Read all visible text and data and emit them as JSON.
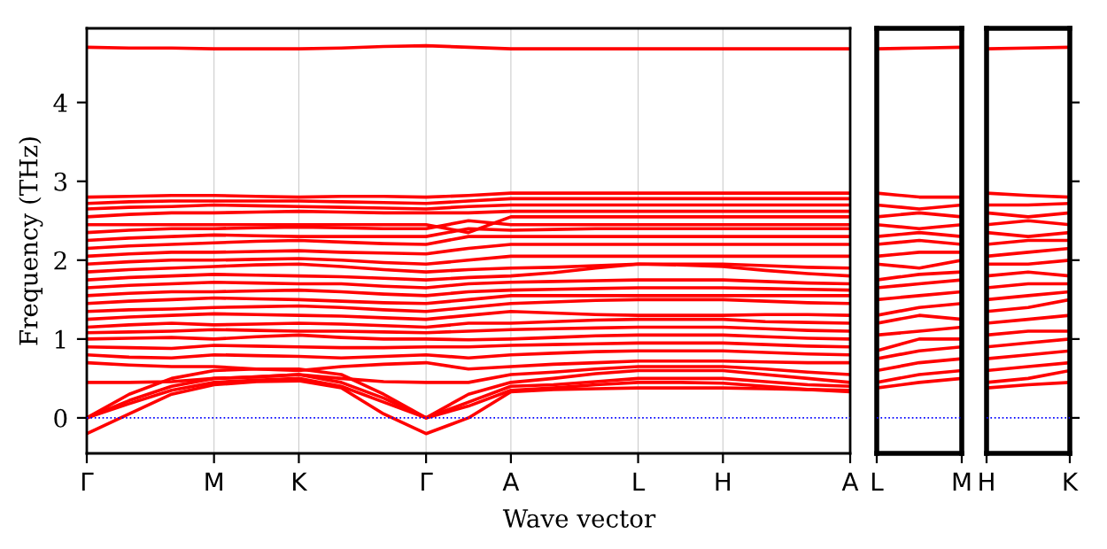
{
  "chart_data": [
    {
      "type": "line",
      "ylabel": "Frequency (THz)",
      "xlabel": "Wave vector",
      "line_style": "solid",
      "marker": "none",
      "grid": "x",
      "legend": false,
      "categories": [
        "Γ",
        null,
        null,
        "M",
        null,
        "K",
        null,
        null,
        "Γ",
        null,
        "A",
        null,
        null,
        "L",
        null,
        "H",
        null,
        null,
        "A"
      ],
      "ylim": [
        -0.45,
        4.94
      ],
      "yticks": [
        0,
        1,
        2,
        3,
        4
      ],
      "ref_lines": [
        {
          "axis": "y",
          "value": 0,
          "label": null,
          "color": "#0000ff",
          "line_style": "dotted"
        }
      ],
      "series": [
        {
          "color": "#ff0000",
          "values": [
            -0.2,
            0.05,
            0.3,
            0.42,
            0.46,
            0.47,
            0.38,
            0.05,
            -0.2,
            0.0,
            0.33,
            0.36,
            0.37,
            0.38,
            0.38,
            0.38,
            0.37,
            0.36,
            0.35
          ]
        },
        {
          "color": "#ff0000",
          "values": [
            0,
            0.18,
            0.35,
            0.45,
            0.48,
            0.5,
            0.4,
            0.2,
            0,
            0.15,
            0.35,
            0.38,
            0.42,
            0.45,
            0.45,
            0.44,
            0.4,
            0.36,
            0.33
          ]
        },
        {
          "color": "#ff0000",
          "values": [
            0,
            0.22,
            0.4,
            0.5,
            0.52,
            0.55,
            0.45,
            0.25,
            0,
            0.2,
            0.4,
            0.42,
            0.46,
            0.5,
            0.5,
            0.5,
            0.46,
            0.42,
            0.4
          ]
        },
        {
          "color": "#ff0000",
          "values": [
            0,
            0.3,
            0.5,
            0.6,
            0.62,
            0.62,
            0.55,
            0.3,
            0,
            0.3,
            0.45,
            0.5,
            0.56,
            0.6,
            0.6,
            0.6,
            0.55,
            0.5,
            0.45
          ]
        },
        {
          "color": "#ff0000",
          "values": [
            0.45,
            0.45,
            0.46,
            0.5,
            0.52,
            0.55,
            0.5,
            0.46,
            0.45,
            0.45,
            0.55,
            0.58,
            0.62,
            0.65,
            0.65,
            0.65,
            0.62,
            0.58,
            0.55
          ]
        },
        {
          "color": "#ff0000",
          "values": [
            0.7,
            0.67,
            0.65,
            0.65,
            0.62,
            0.6,
            0.65,
            0.68,
            0.7,
            0.62,
            0.65,
            0.68,
            0.7,
            0.72,
            0.72,
            0.72,
            0.71,
            0.7,
            0.7
          ]
        },
        {
          "color": "#ff0000",
          "values": [
            0.8,
            0.77,
            0.76,
            0.8,
            0.79,
            0.78,
            0.76,
            0.78,
            0.8,
            0.76,
            0.8,
            0.82,
            0.84,
            0.85,
            0.85,
            0.85,
            0.83,
            0.81,
            0.8
          ]
        },
        {
          "color": "#ff0000",
          "values": [
            0.9,
            0.89,
            0.88,
            0.92,
            0.91,
            0.9,
            0.89,
            0.89,
            0.9,
            0.9,
            0.92,
            0.93,
            0.94,
            0.95,
            0.95,
            0.95,
            0.93,
            0.91,
            0.9
          ]
        },
        {
          "color": "#ff0000",
          "values": [
            1.0,
            1.01,
            1.02,
            1.0,
            1.03,
            1.05,
            1.02,
            1.0,
            1.0,
            0.99,
            1.0,
            1.02,
            1.04,
            1.05,
            1.05,
            1.05,
            1.03,
            1.01,
            1.0
          ]
        },
        {
          "color": "#ff0000",
          "values": [
            1.08,
            1.09,
            1.1,
            1.12,
            1.11,
            1.1,
            1.1,
            1.09,
            1.08,
            1.1,
            1.12,
            1.13,
            1.14,
            1.15,
            1.15,
            1.15,
            1.13,
            1.11,
            1.1
          ]
        },
        {
          "color": "#ff0000",
          "values": [
            1.15,
            1.18,
            1.2,
            1.18,
            1.19,
            1.2,
            1.19,
            1.17,
            1.15,
            1.2,
            1.2,
            1.22,
            1.24,
            1.25,
            1.25,
            1.25,
            1.22,
            1.21,
            1.2
          ]
        },
        {
          "color": "#ff0000",
          "values": [
            1.25,
            1.28,
            1.3,
            1.32,
            1.31,
            1.3,
            1.29,
            1.27,
            1.25,
            1.3,
            1.35,
            1.33,
            1.31,
            1.3,
            1.3,
            1.3,
            1.31,
            1.31,
            1.3
          ]
        },
        {
          "color": "#ff0000",
          "values": [
            1.35,
            1.37,
            1.38,
            1.4,
            1.41,
            1.42,
            1.4,
            1.37,
            1.35,
            1.4,
            1.45,
            1.47,
            1.49,
            1.5,
            1.5,
            1.5,
            1.48,
            1.46,
            1.45
          ]
        },
        {
          "color": "#ff0000",
          "values": [
            1.45,
            1.48,
            1.5,
            1.52,
            1.51,
            1.5,
            1.48,
            1.46,
            1.45,
            1.5,
            1.55,
            1.55,
            1.55,
            1.55,
            1.55,
            1.55,
            1.55,
            1.55,
            1.55
          ]
        },
        {
          "color": "#ff0000",
          "values": [
            1.55,
            1.58,
            1.6,
            1.6,
            1.61,
            1.62,
            1.6,
            1.57,
            1.55,
            1.6,
            1.62,
            1.63,
            1.64,
            1.65,
            1.65,
            1.65,
            1.64,
            1.63,
            1.62
          ]
        },
        {
          "color": "#ff0000",
          "values": [
            1.65,
            1.68,
            1.7,
            1.72,
            1.71,
            1.7,
            1.7,
            1.67,
            1.65,
            1.7,
            1.72,
            1.73,
            1.74,
            1.75,
            1.75,
            1.75,
            1.73,
            1.71,
            1.7
          ]
        },
        {
          "color": "#ff0000",
          "values": [
            1.75,
            1.78,
            1.8,
            1.82,
            1.81,
            1.8,
            1.79,
            1.77,
            1.75,
            1.78,
            1.8,
            1.84,
            1.9,
            1.95,
            1.94,
            1.92,
            1.87,
            1.83,
            1.8
          ]
        },
        {
          "color": "#ff0000",
          "values": [
            1.85,
            1.88,
            1.9,
            1.92,
            1.94,
            1.95,
            1.92,
            1.88,
            1.85,
            1.88,
            1.9,
            1.91,
            1.93,
            1.95,
            1.95,
            1.95,
            1.93,
            1.91,
            1.9
          ]
        },
        {
          "color": "#ff0000",
          "values": [
            1.95,
            1.98,
            2.0,
            2.0,
            2.01,
            2.02,
            2.0,
            1.97,
            1.95,
            2.0,
            2.05,
            2.05,
            2.05,
            2.05,
            2.05,
            2.05,
            2.05,
            2.05,
            2.05
          ]
        },
        {
          "color": "#ff0000",
          "values": [
            2.05,
            2.08,
            2.1,
            2.1,
            2.11,
            2.12,
            2.1,
            2.09,
            2.08,
            2.15,
            2.2,
            2.2,
            2.2,
            2.2,
            2.2,
            2.2,
            2.2,
            2.2,
            2.2
          ]
        },
        {
          "color": "#ff0000",
          "values": [
            2.15,
            2.18,
            2.2,
            2.22,
            2.24,
            2.25,
            2.23,
            2.21,
            2.2,
            2.3,
            2.3,
            2.3,
            2.3,
            2.3,
            2.3,
            2.3,
            2.3,
            2.3,
            2.3
          ]
        },
        {
          "color": "#ff0000",
          "values": [
            2.25,
            2.28,
            2.3,
            2.32,
            2.31,
            2.3,
            2.3,
            2.3,
            2.3,
            2.4,
            2.38,
            2.39,
            2.4,
            2.4,
            2.4,
            2.4,
            2.4,
            2.4,
            2.4
          ]
        },
        {
          "color": "#ff0000",
          "values": [
            2.35,
            2.38,
            2.4,
            2.4,
            2.41,
            2.42,
            2.41,
            2.4,
            2.4,
            2.5,
            2.45,
            2.45,
            2.45,
            2.45,
            2.45,
            2.45,
            2.45,
            2.45,
            2.45
          ]
        },
        {
          "color": "#ff0000",
          "values": [
            2.45,
            2.45,
            2.45,
            2.45,
            2.45,
            2.45,
            2.45,
            2.45,
            2.45,
            2.35,
            2.55,
            2.55,
            2.55,
            2.55,
            2.55,
            2.55,
            2.55,
            2.55,
            2.55
          ]
        },
        {
          "color": "#ff0000",
          "values": [
            2.55,
            2.58,
            2.6,
            2.6,
            2.61,
            2.62,
            2.61,
            2.6,
            2.6,
            2.6,
            2.62,
            2.62,
            2.62,
            2.62,
            2.62,
            2.62,
            2.62,
            2.62,
            2.62
          ]
        },
        {
          "color": "#ff0000",
          "values": [
            2.65,
            2.67,
            2.68,
            2.7,
            2.69,
            2.68,
            2.67,
            2.66,
            2.65,
            2.68,
            2.7,
            2.7,
            2.7,
            2.7,
            2.7,
            2.7,
            2.7,
            2.7,
            2.7
          ]
        },
        {
          "color": "#ff0000",
          "values": [
            2.72,
            2.74,
            2.75,
            2.75,
            2.75,
            2.75,
            2.74,
            2.73,
            2.72,
            2.75,
            2.78,
            2.78,
            2.78,
            2.78,
            2.78,
            2.78,
            2.78,
            2.78,
            2.78
          ]
        },
        {
          "color": "#ff0000",
          "values": [
            2.8,
            2.81,
            2.82,
            2.82,
            2.81,
            2.8,
            2.81,
            2.81,
            2.8,
            2.82,
            2.85,
            2.85,
            2.85,
            2.85,
            2.85,
            2.85,
            2.85,
            2.85,
            2.85
          ]
        },
        {
          "color": "#ff0000",
          "values": [
            4.7,
            4.69,
            4.69,
            4.68,
            4.68,
            4.68,
            4.69,
            4.71,
            4.72,
            4.7,
            4.68,
            4.68,
            4.68,
            4.68,
            4.68,
            4.68,
            4.68,
            4.68,
            4.68
          ]
        }
      ]
    },
    {
      "type": "line",
      "line_style": "solid",
      "marker": "none",
      "grid": false,
      "legend": false,
      "tick_labels": "x",
      "categories": [
        "L",
        null,
        "M"
      ],
      "ylim": [
        -0.45,
        4.94
      ],
      "ref_lines": [
        {
          "axis": "y",
          "value": 0,
          "label": null,
          "color": "#0000ff",
          "line_style": "dotted"
        }
      ],
      "series": [
        {
          "color": "#ff0000",
          "values": [
            0.38,
            0.45,
            0.5
          ]
        },
        {
          "color": "#ff0000",
          "values": [
            0.45,
            0.55,
            0.6
          ]
        },
        {
          "color": "#ff0000",
          "values": [
            0.6,
            0.7,
            0.75
          ]
        },
        {
          "color": "#ff0000",
          "values": [
            0.75,
            0.85,
            0.9
          ]
        },
        {
          "color": "#ff0000",
          "values": [
            0.85,
            1.0,
            1.0
          ]
        },
        {
          "color": "#ff0000",
          "values": [
            1.05,
            1.1,
            1.15
          ]
        },
        {
          "color": "#ff0000",
          "values": [
            1.2,
            1.3,
            1.25
          ]
        },
        {
          "color": "#ff0000",
          "values": [
            1.3,
            1.4,
            1.45
          ]
        },
        {
          "color": "#ff0000",
          "values": [
            1.5,
            1.55,
            1.6
          ]
        },
        {
          "color": "#ff0000",
          "values": [
            1.65,
            1.7,
            1.75
          ]
        },
        {
          "color": "#ff0000",
          "values": [
            1.75,
            1.82,
            1.85
          ]
        },
        {
          "color": "#ff0000",
          "values": [
            1.95,
            1.9,
            2.0
          ]
        },
        {
          "color": "#ff0000",
          "values": [
            2.05,
            2.1,
            2.1
          ]
        },
        {
          "color": "#ff0000",
          "values": [
            2.2,
            2.25,
            2.2
          ]
        },
        {
          "color": "#ff0000",
          "values": [
            2.3,
            2.35,
            2.3
          ]
        },
        {
          "color": "#ff0000",
          "values": [
            2.45,
            2.4,
            2.45
          ]
        },
        {
          "color": "#ff0000",
          "values": [
            2.55,
            2.6,
            2.55
          ]
        },
        {
          "color": "#ff0000",
          "values": [
            2.7,
            2.65,
            2.7
          ]
        },
        {
          "color": "#ff0000",
          "values": [
            2.85,
            2.8,
            2.8
          ]
        },
        {
          "color": "#ff0000",
          "values": [
            4.68,
            4.69,
            4.7
          ]
        }
      ]
    },
    {
      "type": "line",
      "line_style": "solid",
      "marker": "none",
      "grid": false,
      "legend": false,
      "tick_labels": "x",
      "categories": [
        "H",
        null,
        "K"
      ],
      "ylim": [
        -0.45,
        4.94
      ],
      "yticks": [
        {
          "value": 0,
          "label": null
        },
        {
          "value": 1,
          "label": null
        },
        {
          "value": 2,
          "label": null
        },
        {
          "value": 3,
          "label": null
        },
        {
          "value": 4,
          "label": null
        }
      ],
      "ref_lines": [
        {
          "axis": "y",
          "value": 0,
          "label": null,
          "color": "#0000ff",
          "line_style": "dotted"
        }
      ],
      "series": [
        {
          "color": "#ff0000",
          "values": [
            0.38,
            0.42,
            0.45
          ]
        },
        {
          "color": "#ff0000",
          "values": [
            0.45,
            0.5,
            0.6
          ]
        },
        {
          "color": "#ff0000",
          "values": [
            0.6,
            0.65,
            0.7
          ]
        },
        {
          "color": "#ff0000",
          "values": [
            0.75,
            0.8,
            0.85
          ]
        },
        {
          "color": "#ff0000",
          "values": [
            0.9,
            0.95,
            1.0
          ]
        },
        {
          "color": "#ff0000",
          "values": [
            1.05,
            1.1,
            1.1
          ]
        },
        {
          "color": "#ff0000",
          "values": [
            1.2,
            1.25,
            1.3
          ]
        },
        {
          "color": "#ff0000",
          "values": [
            1.35,
            1.4,
            1.5
          ]
        },
        {
          "color": "#ff0000",
          "values": [
            1.5,
            1.55,
            1.6
          ]
        },
        {
          "color": "#ff0000",
          "values": [
            1.65,
            1.7,
            1.7
          ]
        },
        {
          "color": "#ff0000",
          "values": [
            1.8,
            1.85,
            1.8
          ]
        },
        {
          "color": "#ff0000",
          "values": [
            1.95,
            1.95,
            2.0
          ]
        },
        {
          "color": "#ff0000",
          "values": [
            2.05,
            2.1,
            2.15
          ]
        },
        {
          "color": "#ff0000",
          "values": [
            2.2,
            2.25,
            2.25
          ]
        },
        {
          "color": "#ff0000",
          "values": [
            2.35,
            2.3,
            2.35
          ]
        },
        {
          "color": "#ff0000",
          "values": [
            2.45,
            2.5,
            2.45
          ]
        },
        {
          "color": "#ff0000",
          "values": [
            2.6,
            2.55,
            2.6
          ]
        },
        {
          "color": "#ff0000",
          "values": [
            2.7,
            2.7,
            2.72
          ]
        },
        {
          "color": "#ff0000",
          "values": [
            2.85,
            2.82,
            2.8
          ]
        },
        {
          "color": "#ff0000",
          "values": [
            4.68,
            4.69,
            4.7
          ]
        }
      ]
    }
  ]
}
